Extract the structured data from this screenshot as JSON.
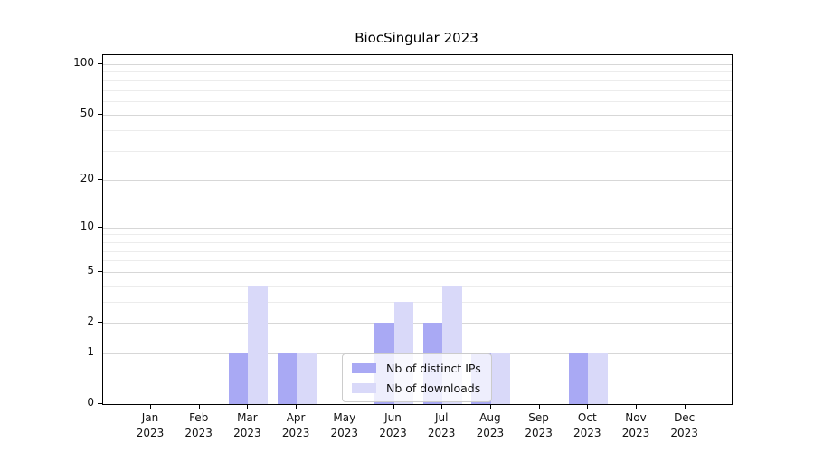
{
  "title": "BiocSingular 2023",
  "chart_data": {
    "type": "bar",
    "title": "BiocSingular 2023",
    "xlabel": "",
    "ylabel": "",
    "y_scale": "log10(1+y)",
    "ylim": [
      0,
      100
    ],
    "y_major_ticks": [
      0,
      1,
      2,
      5,
      10,
      20,
      50,
      100
    ],
    "y_minor_ticks": [
      3,
      4,
      6,
      7,
      8,
      9,
      30,
      40,
      60,
      70,
      80,
      90
    ],
    "categories": [
      "Jan",
      "Feb",
      "Mar",
      "Apr",
      "May",
      "Jun",
      "Jul",
      "Aug",
      "Sep",
      "Oct",
      "Nov",
      "Dec"
    ],
    "category_year": "2023",
    "series": [
      {
        "name": "Nb of distinct IPs",
        "color": "#a9a9f4",
        "values": [
          0,
          0,
          1,
          1,
          0,
          2,
          2,
          1,
          0,
          1,
          0,
          0
        ]
      },
      {
        "name": "Nb of downloads",
        "color": "#d9d9f9",
        "values": [
          0,
          0,
          4,
          1,
          0,
          3,
          4,
          1,
          0,
          1,
          0,
          0
        ]
      }
    ],
    "legend": {
      "position": "lower center",
      "entries": [
        "Nb of distinct IPs",
        "Nb of downloads"
      ]
    },
    "grid": true
  },
  "colors": {
    "grid_major": "#d7d7d7",
    "grid_minor": "#ececec",
    "spine": "#000000",
    "text": "#111111",
    "legend_border": "#cccccc",
    "legend_bg": "rgba(255,255,255,0.8)"
  }
}
